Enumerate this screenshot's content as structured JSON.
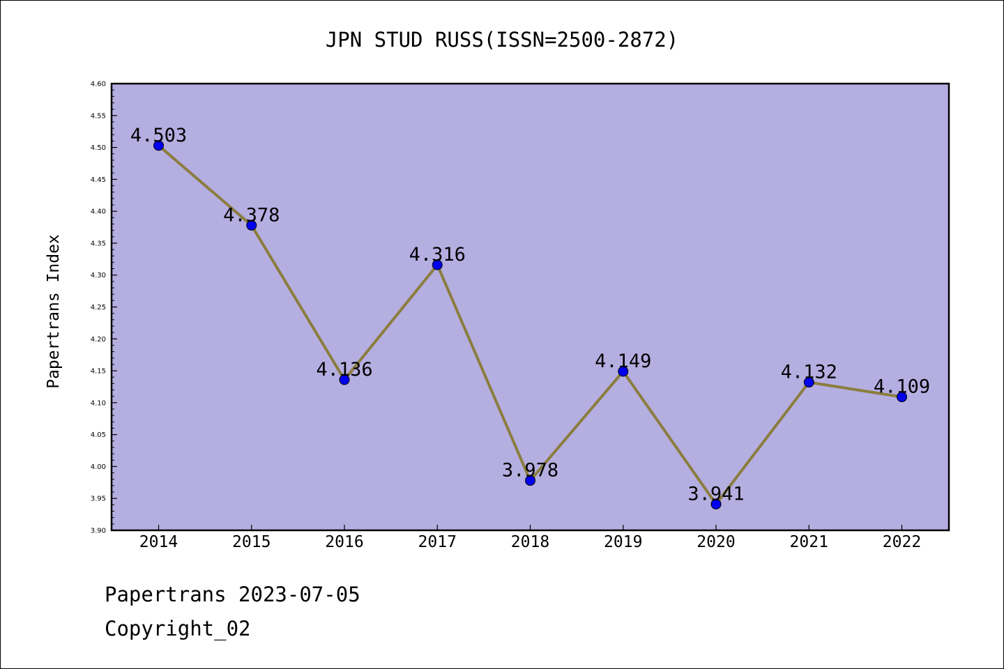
{
  "chart_data": {
    "type": "line",
    "title": "JPN STUD RUSS(ISSN=2500-2872)",
    "ylabel": "Papertrans Index",
    "xlabel": "",
    "categories": [
      "2014",
      "2015",
      "2016",
      "2017",
      "2018",
      "2019",
      "2020",
      "2021",
      "2022"
    ],
    "series": [
      {
        "values": [
          4.503,
          4.378,
          4.136,
          4.316,
          3.978,
          4.149,
          3.941,
          4.132,
          4.109
        ],
        "labels": [
          "4.503",
          "4.378",
          "4.136",
          "4.316",
          "3.978",
          "4.149",
          "3.941",
          "4.132",
          "4.109"
        ]
      }
    ],
    "ylim": [
      3.9,
      4.6
    ],
    "yticks": [
      "3.90",
      "3.95",
      "4.00",
      "4.05",
      "4.10",
      "4.15",
      "4.20",
      "4.25",
      "4.30",
      "4.35",
      "4.40",
      "4.45",
      "4.50",
      "4.55",
      "4.60"
    ],
    "grid": false,
    "legend": "none",
    "colors": {
      "plot_background": "#b5aee1",
      "line": "#8b7d3e",
      "marker": "#0000ee",
      "marker_edge": "#000000"
    }
  },
  "footer": {
    "line1": "Papertrans 2023-07-05",
    "line2": "Copyright_02"
  }
}
